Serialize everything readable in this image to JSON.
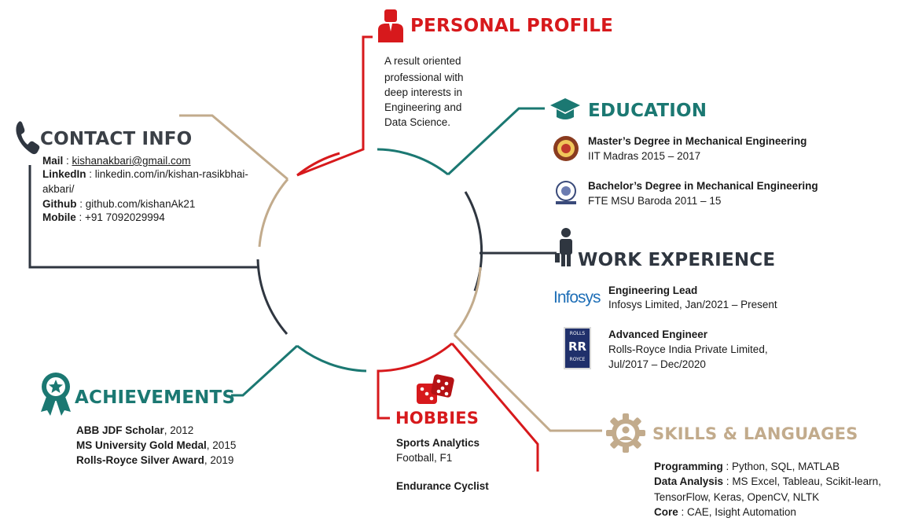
{
  "colors": {
    "red": "#d7191c",
    "teal": "#1b7872",
    "tan": "#c2ab8c",
    "dark": "#2f3640",
    "heading_dark": "#3b4047"
  },
  "sections": {
    "personal_profile": {
      "title": "PERSONAL PROFILE",
      "icon": "person-suit-icon",
      "lines": [
        "A result oriented",
        "professional with",
        "deep interests in",
        "Engineering and",
        "Data Science."
      ]
    },
    "education": {
      "title": "EDUCATION",
      "icon": "graduation-cap-icon",
      "items": [
        {
          "degree": "Master’s Degree in Mechanical Engineering",
          "detail": "IIT Madras 2015 – 2017",
          "logo": "iit-madras-logo"
        },
        {
          "degree": "Bachelor’s Degree in Mechanical Engineering",
          "detail": "FTE MSU Baroda 2011 – 15",
          "logo": "msu-baroda-logo"
        }
      ]
    },
    "work_experience": {
      "title": "WORK EXPERIENCE",
      "icon": "businessman-icon",
      "items": [
        {
          "role": "Engineering Lead",
          "detail1": "Infosys Limited, Jan/2021 – Present",
          "detail2": "",
          "logo_text": "Infosys"
        },
        {
          "role": "Advanced Engineer",
          "detail1": "Rolls-Royce India Private Limited,",
          "detail2": "Jul/2017 – Dec/2020",
          "logo_top": "ROLLS",
          "logo_mid": "RR",
          "logo_bottom": "ROYCE"
        }
      ]
    },
    "contact_info": {
      "title": "CONTACT INFO",
      "icon": "phone-icon",
      "mail_label": "Mail",
      "mail": "kishanakbari@gmail.com",
      "linkedin_label": "LinkedIn",
      "linkedin_1": "linkedin.com/in/kishan-rasikbhai-",
      "linkedin_2": "akbari/",
      "github_label": "Github",
      "github": "github.com/kishanAk21",
      "mobile_label": "Mobile",
      "mobile": "+91 7092029994"
    },
    "achievements": {
      "title": "ACHIEVEMENTS",
      "icon": "award-ribbon-icon",
      "items": [
        {
          "name": "ABB JDF Scholar",
          "year": ", 2012"
        },
        {
          "name": "MS University Gold Medal",
          "year": ", 2015"
        },
        {
          "name": "Rolls-Royce Silver Award",
          "year": ", 2019"
        }
      ]
    },
    "hobbies": {
      "title": "HOBBIES",
      "icon": "dice-icon",
      "item1_title": "Sports Analytics",
      "item1_detail": "Football, F1",
      "item2_title": "Endurance Cyclist"
    },
    "skills": {
      "title": "SKILLS & LANGUAGES",
      "icon": "gear-person-icon",
      "programming_label": "Programming",
      "programming": "Python, SQL, MATLAB",
      "data_label": "Data Analysis",
      "data_1": "MS Excel, Tableau, Scikit-learn,",
      "data_2": "TensorFlow, Keras, OpenCV, NLTK",
      "core_label": "Core",
      "core": "CAE, Isight Automation"
    }
  }
}
